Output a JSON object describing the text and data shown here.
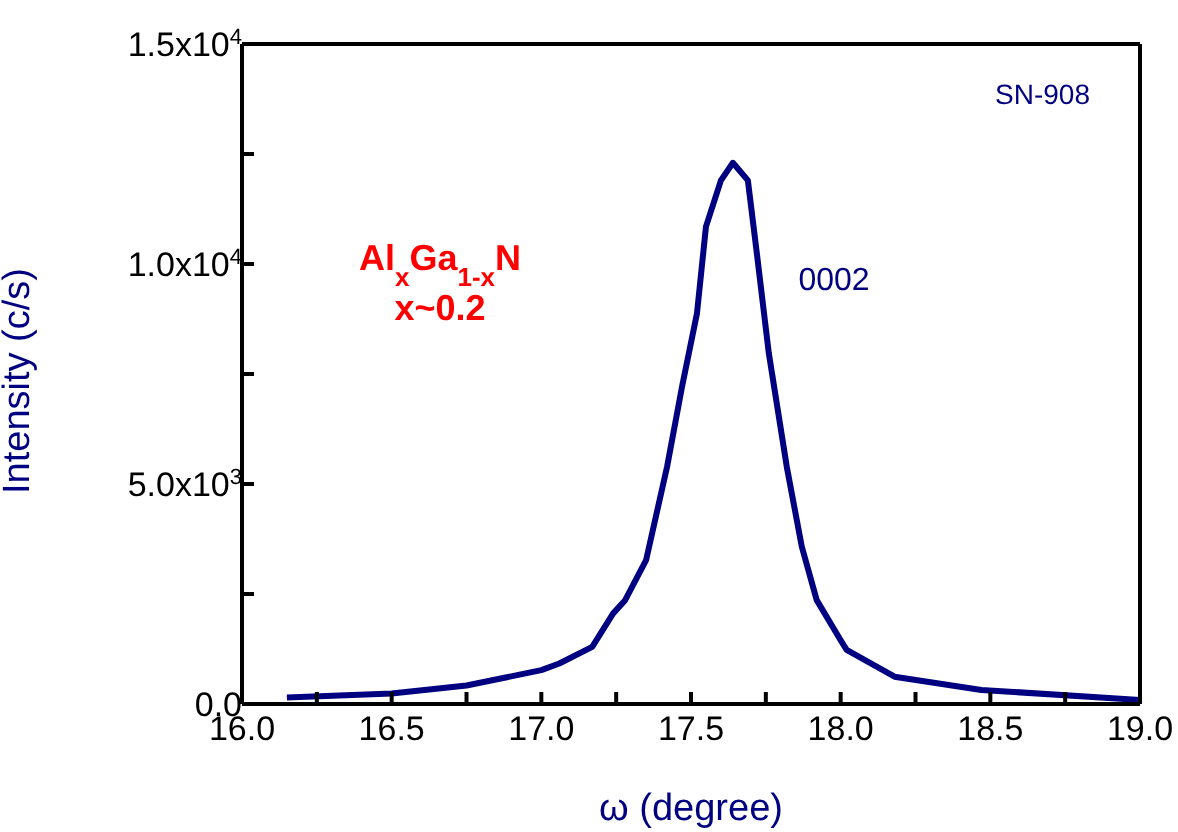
{
  "chart_data": {
    "type": "line",
    "xlabel": "ω (degree)",
    "ylabel": "Intensity (c/s)",
    "annotations": [
      "SN-908",
      "Al$_{x}$Ga$_{1-x}$N",
      "x~0.2",
      "0002"
    ],
    "xlim": [
      16.0,
      19.0
    ],
    "xticks": [
      {
        "value": 16,
        "label": "16.0"
      },
      {
        "value": 16.25,
        "label": null
      },
      16.5,
      {
        "value": 16.75,
        "label": null
      },
      {
        "value": 17,
        "label": "17.0"
      },
      {
        "value": 17.25,
        "label": null
      },
      17.5,
      {
        "value": 17.75,
        "label": null
      },
      {
        "value": 18,
        "label": "18.0"
      },
      {
        "value": 18.25,
        "label": null
      },
      18.5,
      {
        "value": 18.75,
        "label": null
      },
      {
        "value": 19,
        "label": "19.0"
      }
    ],
    "ylim": [
      0,
      15000
    ],
    "yticks": [
      {
        "value": 0,
        "label": "0.0"
      },
      {
        "value": 2500,
        "label": null
      },
      {
        "value": 5000,
        "label": "5.0x10$^{3}$"
      },
      {
        "value": 7500,
        "label": null
      },
      {
        "value": 10000,
        "label": "1.0x10$^{4}$"
      },
      {
        "value": 12500,
        "label": null
      },
      {
        "value": 15000,
        "label": "1.5x10$^{4}$"
      }
    ],
    "marker": "none",
    "line_style": "solid",
    "series": [
      {
        "color": "#000080",
        "x": [
          16.15,
          16.5,
          16.75,
          17.0,
          17.06,
          17.17,
          17.24,
          17.28,
          17.35,
          17.42,
          17.47,
          17.52,
          17.55,
          17.6,
          17.64,
          17.69,
          17.72,
          17.76,
          17.82,
          17.87,
          17.92,
          18.0,
          18.02,
          18.18,
          18.47,
          19.0
        ],
        "values": [
          150,
          240,
          420,
          770,
          920,
          1300,
          2060,
          2360,
          3270,
          5390,
          7210,
          8880,
          10850,
          11900,
          12300,
          11900,
          10240,
          7970,
          5390,
          3580,
          2360,
          1450,
          1230,
          620,
          320,
          90
        ]
      }
    ]
  }
}
